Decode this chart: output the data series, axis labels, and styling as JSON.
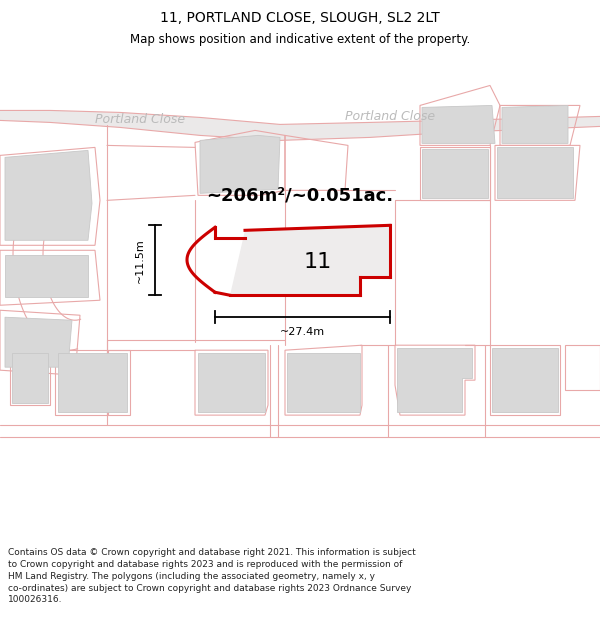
{
  "title": "11, PORTLAND CLOSE, SLOUGH, SL2 2LT",
  "subtitle": "Map shows position and indicative extent of the property.",
  "footer": "Contains OS data © Crown copyright and database right 2021. This information is subject to Crown copyright and database rights 2023 and is reproduced with the permission of HM Land Registry. The polygons (including the associated geometry, namely x, y co-ordinates) are subject to Crown copyright and database rights 2023 Ordnance Survey 100026316.",
  "area_text": "~206m²/~0.051ac.",
  "number_text": "11",
  "dim_width": "~27.4m",
  "dim_height": "~11.5m",
  "highlight_color": "#cc0000",
  "plot_color": "#e8a8a8",
  "building_fill": "#d8d8d8",
  "building_edge": "#c8c8c8",
  "map_bg": "#f2f0f0",
  "road_label_color": "#bbbbbb",
  "title_fs": 10,
  "subtitle_fs": 8.5,
  "footer_fs": 6.5,
  "area_fs": 13,
  "number_fs": 16,
  "label_fs": 9,
  "dim_fs": 8
}
